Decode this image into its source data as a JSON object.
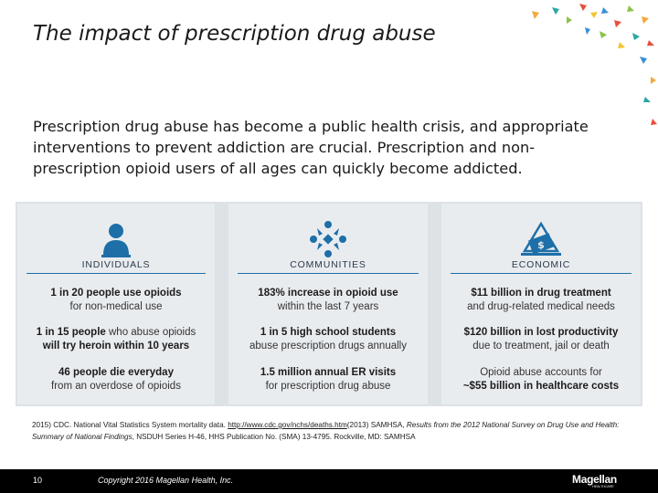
{
  "slide": {
    "title": "The impact of prescription drug abuse",
    "intro": "Prescription drug abuse has become a public health crisis, and appropriate interventions to prevent addiction are crucial. Prescription and non-prescription opioid users of all ages can quickly become addicted."
  },
  "columns": [
    {
      "heading": "INDIVIDUALS",
      "icon": "person-icon",
      "stats": [
        {
          "bold": "1 in 20 people use opioids",
          "rest": "for non-medical use"
        },
        {
          "bold": "1 in 15 people",
          "rest": "who abuse opioids",
          "bold2": "will try heroin within 10 years"
        },
        {
          "bold": "46 people die everyday",
          "rest": "from an overdose of opioids"
        }
      ]
    },
    {
      "heading": "COMMUNITIES",
      "icon": "community-icon",
      "stats": [
        {
          "bold": "183% increase in opioid use",
          "rest": "within the last 7 years"
        },
        {
          "bold": "1 in 5 high school students",
          "rest": "abuse prescription drugs annually"
        },
        {
          "bold": "1.5 million annual ER visits",
          "rest": "for prescription drug abuse"
        }
      ]
    },
    {
      "heading": "ECONOMIC",
      "icon": "money-icon",
      "stats": [
        {
          "bold": "$11 billion in drug treatment",
          "rest": "and drug-related medical needs"
        },
        {
          "bold": "$120 billion in lost productivity",
          "rest": "due to treatment, jail or death"
        },
        {
          "rest": "Opioid abuse accounts for",
          "bold": "~$55 billion in healthcare costs"
        }
      ]
    }
  ],
  "source": {
    "prefix": "2015) CDC. National Vital Statistics System mortality data.",
    "link": "http://www.cdc.gov/nchs/deaths.htm",
    "after_link": "(2013) SAMHSA,",
    "italic": "Results from the 2012 National Survey on Drug Use and Health: Summary of National Findings",
    "suffix": ", NSDUH Series H-46, HHS Publication No. (SMA) 13-4795. Rockville, MD: SAMHSA"
  },
  "footer": {
    "page_number": "10",
    "copyright": "Copyright 2016 Magellan Health, Inc.",
    "logo_text": "Magellan",
    "logo_sub": "HEALTHCARE"
  },
  "colors": {
    "accent": "#1e6fa8",
    "panel": "#e9ecef",
    "footer": "#000000"
  }
}
